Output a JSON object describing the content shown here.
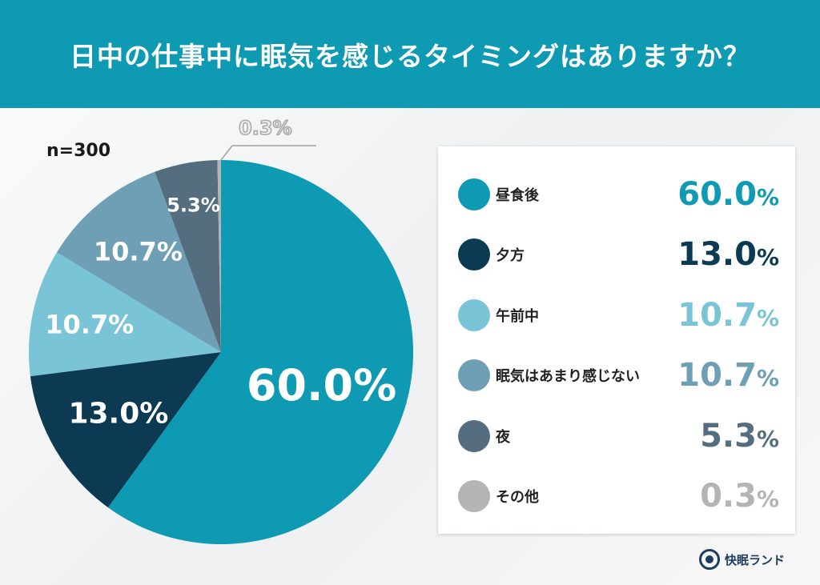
{
  "header": {
    "title": "日中の仕事中に眠気を感じるタイミングはありますか？"
  },
  "sample": {
    "label": "n=300"
  },
  "pie_labels": {
    "s0": "60.0",
    "s1": "13.0",
    "s2": "10.7",
    "s3": "10.7",
    "s4": "5.3",
    "s5": "0.3",
    "pct": "%"
  },
  "legend": {
    "items": [
      {
        "label": "昼食後",
        "value": "60.0",
        "pct": "%",
        "color": "#0e9ab3"
      },
      {
        "label": "夕方",
        "value": "13.0",
        "pct": "%",
        "color": "#0b3a52"
      },
      {
        "label": "午前中",
        "value": "10.7",
        "pct": "%",
        "color": "#79c4d6"
      },
      {
        "label": "眠気はあまり感じない",
        "value": "10.7",
        "pct": "%",
        "color": "#6e9fb4"
      },
      {
        "label": "夜",
        "value": "5.3",
        "pct": "%",
        "color": "#546e80"
      },
      {
        "label": "その他",
        "value": "0.3",
        "pct": "%",
        "color": "#b4b4b4"
      }
    ]
  },
  "logo": {
    "text": "快眠ランド"
  },
  "chart_data": {
    "type": "pie",
    "title": "日中の仕事中に眠気を感じるタイミングはありますか？",
    "subtitle": "n=300",
    "categories": [
      "昼食後",
      "夕方",
      "午前中",
      "眠気はあまり感じない",
      "夜",
      "その他"
    ],
    "values": [
      60.0,
      13.0,
      10.7,
      10.7,
      5.3,
      0.3
    ],
    "colors": [
      "#0e9ab3",
      "#0b3a52",
      "#79c4d6",
      "#6e9fb4",
      "#546e80",
      "#b4b4b4"
    ],
    "unit": "%",
    "legend_position": "right",
    "start_angle": "12 o'clock, clockwise"
  }
}
